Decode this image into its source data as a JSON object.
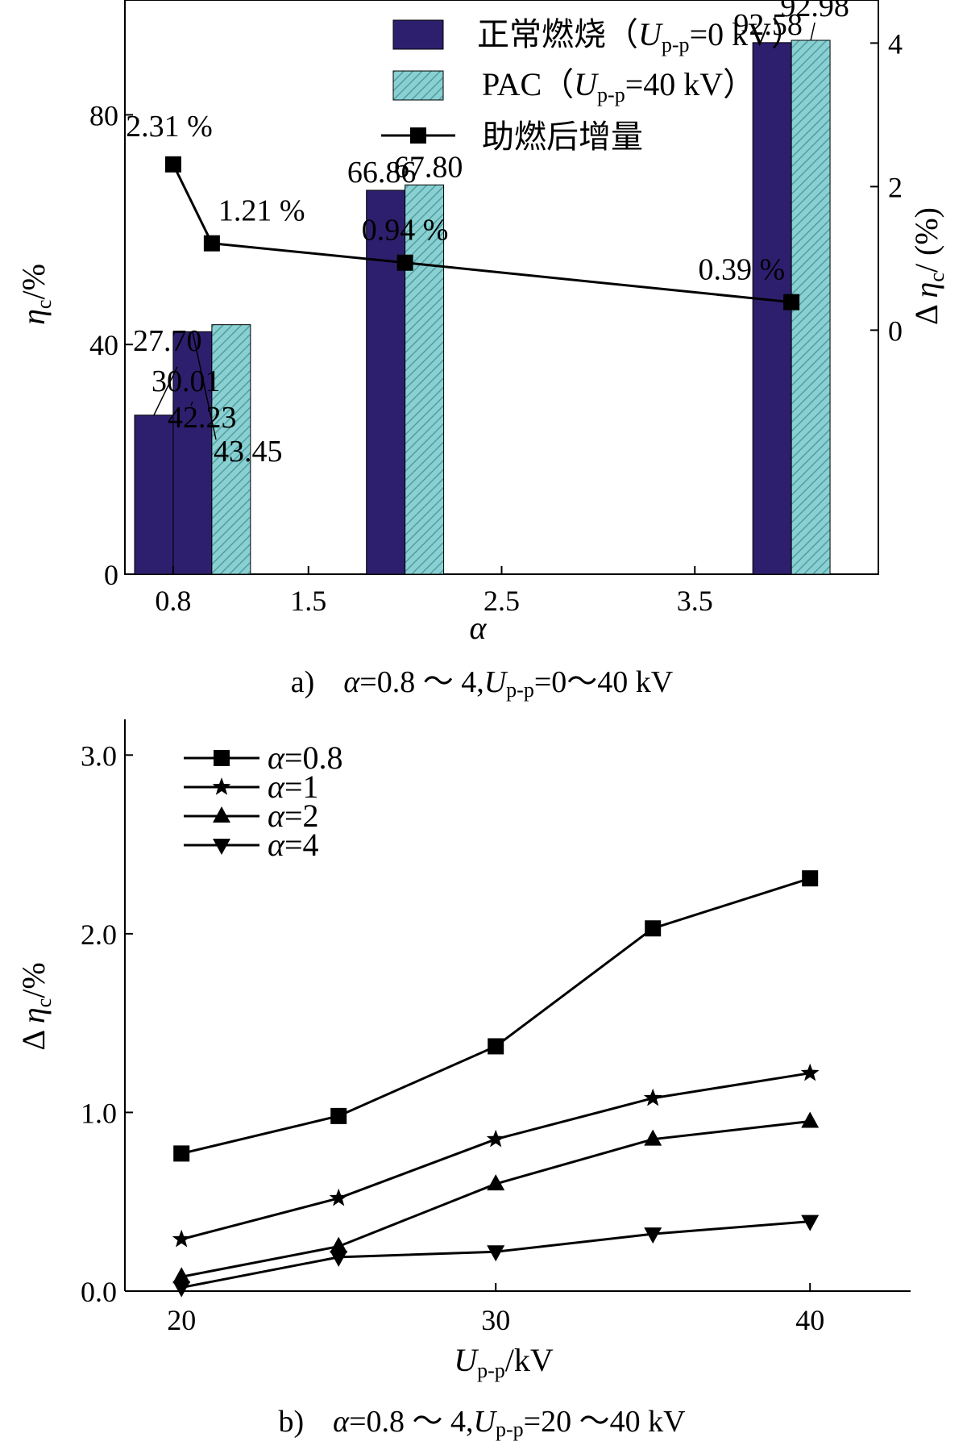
{
  "colors": {
    "bar_normal": "#2e1f6e",
    "bar_pac": "#8ad0d2",
    "bar_pac_hatch": "#4f9ea0",
    "line": "#000000"
  },
  "icons": {
    "square_marker": "filled-square",
    "star_marker": "filled-star",
    "up_triangle_marker": "filled-triangle-up",
    "down_triangle_marker": "filled-triangle-down"
  },
  "chart_data": [
    {
      "type": "bar",
      "panel": "a",
      "caption": {
        "prefix": "a)",
        "alpha": "α",
        "range": "=0.8 ～ 4,",
        "u": "U",
        "sub": "p-p",
        "rest": "=0～40 kV"
      },
      "xlabel": "α",
      "ylabel": {
        "main": "η",
        "sub": "c",
        "unit": "/%"
      },
      "y2label": {
        "prefix": "Δ ",
        "main": "η",
        "sub": "c",
        "unit": "/ (%)"
      },
      "xlim": [
        0.55,
        4.45
      ],
      "ylim": [
        0,
        100
      ],
      "y2lim": [
        -3.4,
        4.6
      ],
      "x_ticks": [
        0.8,
        1.5,
        2.5,
        3.5
      ],
      "x_tick_labels": [
        "0.8",
        "1.5",
        "2.5",
        "3.5"
      ],
      "y_ticks": [
        0,
        40,
        80
      ],
      "y_tick_labels": [
        "0",
        "40",
        "80"
      ],
      "y2_ticks": [
        0,
        2,
        4
      ],
      "y2_tick_labels": [
        "0",
        "2",
        "4"
      ],
      "x": [
        0.8,
        1.0,
        2.0,
        4.0
      ],
      "bar_width": 0.2,
      "series": [
        {
          "name": "正常燃烧",
          "legend": {
            "label": "正常燃烧（",
            "u": "U",
            "sub": "p-p",
            "rest": "=0 kV）"
          },
          "values": [
            27.7,
            42.23,
            66.86,
            92.58
          ],
          "value_labels": [
            "27.70",
            "42.23",
            "66.86",
            "92.58"
          ]
        },
        {
          "name": "PAC",
          "legend": {
            "label": "PAC（",
            "u": "U",
            "sub": "p-p",
            "rest": "=40 kV）"
          },
          "values": [
            30.01,
            43.45,
            67.8,
            92.98
          ],
          "value_labels": [
            "30.01",
            "43.45",
            "67.80",
            "92.98"
          ]
        }
      ],
      "increment": {
        "name": "助燃后增量",
        "axis": "right",
        "x": [
          0.8,
          1.0,
          2.0,
          4.0
        ],
        "values": [
          2.31,
          1.21,
          0.94,
          0.39
        ],
        "value_labels": [
          "2.31 %",
          "1.21 %",
          "0.94 %",
          "0.39 %"
        ]
      }
    },
    {
      "type": "line",
      "panel": "b",
      "caption": {
        "prefix": "b)",
        "alpha": "α",
        "range": "=0.8 ～ 4,",
        "u": "U",
        "sub": "p-p",
        "rest": "=20 ～40 kV"
      },
      "xlabel": {
        "main": "U",
        "sub": "p-p",
        "unit": "/kV"
      },
      "ylabel": {
        "prefix": "Δ ",
        "main": "η",
        "sub": "c",
        "unit": "/%"
      },
      "xlim": [
        18.2,
        43.2
      ],
      "ylim": [
        0,
        3.2
      ],
      "x_ticks": [
        20,
        30,
        40
      ],
      "x_tick_labels": [
        "20",
        "30",
        "40"
      ],
      "y_ticks": [
        0,
        1,
        2,
        3
      ],
      "y_tick_labels": [
        "0.0",
        "1.0",
        "2.0",
        "3.0"
      ],
      "x": [
        20,
        25,
        30,
        35,
        40
      ],
      "series": [
        {
          "name": "α=0.8",
          "alpha": "α",
          "value": "=0.8",
          "marker": "square",
          "values": [
            0.77,
            0.98,
            1.37,
            2.03,
            2.31
          ]
        },
        {
          "name": "α=1",
          "alpha": "α",
          "value": "=1",
          "marker": "star",
          "values": [
            0.29,
            0.52,
            0.85,
            1.08,
            1.22
          ]
        },
        {
          "name": "α=2",
          "alpha": "α",
          "value": "=2",
          "marker": "triangle-up",
          "values": [
            0.08,
            0.25,
            0.6,
            0.85,
            0.95
          ]
        },
        {
          "name": "α=4",
          "alpha": "α",
          "value": "=4",
          "marker": "triangle-down",
          "values": [
            0.02,
            0.19,
            0.22,
            0.32,
            0.39
          ]
        }
      ]
    }
  ]
}
